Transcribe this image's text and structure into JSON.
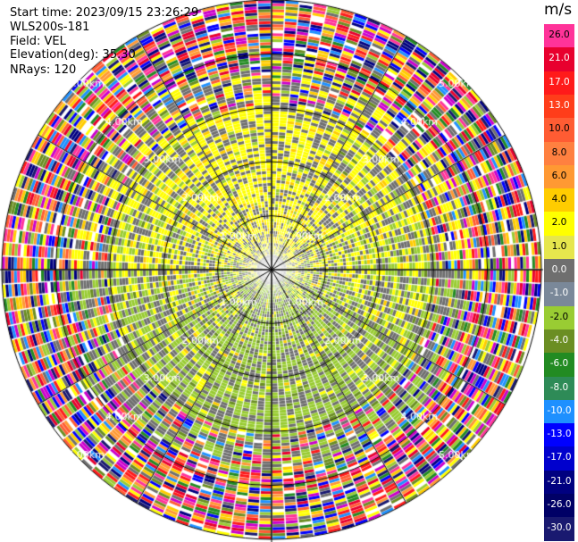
{
  "header": {
    "start_time": "Start time: 2023/09/15 23:26:29",
    "instrument": "WLS200s-181",
    "field": "Field: VEL",
    "elevation": "Elevation(deg): 35.30",
    "nrays": "NRays: 120"
  },
  "colorbar": {
    "unit": "m/s",
    "labels": [
      "26.0",
      "21.0",
      "17.0",
      "13.0",
      "10.0",
      "8.0",
      "6.0",
      "4.0",
      "2.0",
      "1.0",
      "0.0",
      "-1.0",
      "-2.0",
      "-4.0",
      "-6.0",
      "-8.0",
      "-10.0",
      "-13.0",
      "-17.0",
      "-21.0",
      "-26.0",
      "-30.0"
    ],
    "colors": [
      "#ff3399",
      "#e8002e",
      "#ff1a1a",
      "#ff3d1a",
      "#ff5c33",
      "#ff8040",
      "#ff9933",
      "#ffcc00",
      "#ffff00",
      "#e6e64d",
      "#6f6f6f",
      "#7a8899",
      "#99cc33",
      "#6b8e23",
      "#228b22",
      "#2e8b57",
      "#1e90ff",
      "#0000ff",
      "#0000cd",
      "#000080",
      "#000066",
      "#191970"
    ]
  },
  "chart_data": {
    "type": "heatmap",
    "projection": "polar",
    "field": "VEL",
    "nrays": 120,
    "range_rings_km": [
      1.0,
      2.0,
      3.0,
      4.0,
      5.0
    ],
    "ring_labels": [
      "1.00km",
      "2.00km",
      "3.00km",
      "4.00km",
      "5.00km"
    ],
    "max_range_km": 5.0,
    "spokes_deg": [
      0,
      30,
      60,
      90,
      120,
      150,
      180,
      210,
      240,
      270,
      300,
      330
    ],
    "value_range": [
      -30.0,
      26.0
    ],
    "grid": true
  }
}
